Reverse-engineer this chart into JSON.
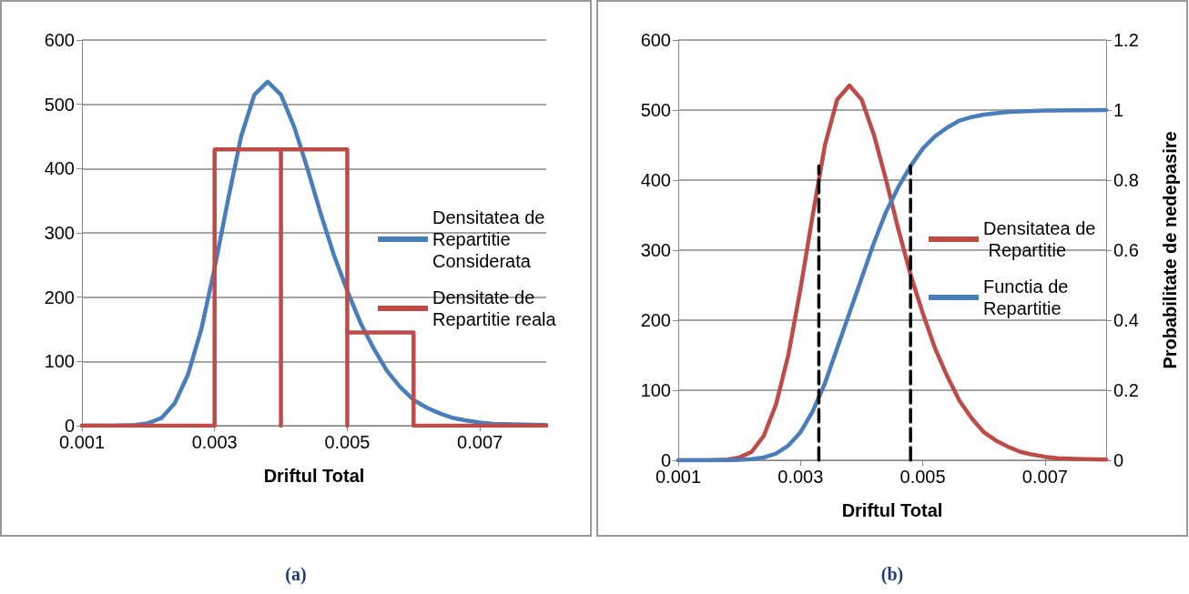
{
  "chart_data": [
    {
      "type": "line",
      "xlabel": "Driftul Total",
      "annotations": [
        "(a)"
      ],
      "xlim": [
        0.001,
        0.008
      ],
      "xticks": [
        0.001,
        0.003,
        0.005,
        0.007
      ],
      "ylim": [
        0,
        600
      ],
      "yticks": [
        0,
        100,
        200,
        300,
        400,
        500,
        600
      ],
      "grid": "y",
      "legend": "right",
      "marker": "none",
      "series": [
        {
          "name": "Densitatea de Repartitie Considerata",
          "color": "#4a7ebb",
          "x": [
            0.001,
            0.0015,
            0.0018,
            0.002,
            0.0022,
            0.0024,
            0.0026,
            0.0028,
            0.003,
            0.0032,
            0.0034,
            0.0036,
            0.0038,
            0.004,
            0.0042,
            0.0044,
            0.0046,
            0.0048,
            0.005,
            0.0052,
            0.0054,
            0.0056,
            0.0058,
            0.006,
            0.0062,
            0.0064,
            0.0066,
            0.0068,
            0.007,
            0.0072,
            0.0075,
            0.008
          ],
          "values": [
            0,
            0,
            1,
            4,
            12,
            35,
            80,
            150,
            245,
            350,
            450,
            515,
            535,
            515,
            465,
            400,
            330,
            265,
            210,
            160,
            120,
            85,
            60,
            40,
            28,
            19,
            12,
            8,
            5,
            3,
            2,
            1
          ]
        },
        {
          "name": "Densitate de Repartitie reala",
          "color": "#be4b48",
          "x": [
            0.001,
            0.003,
            0.003,
            0.004,
            0.004,
            0.004,
            0.005,
            0.005,
            0.005,
            0.006,
            0.006,
            0.008
          ],
          "values": [
            0,
            0,
            430,
            430,
            0,
            430,
            430,
            0,
            145,
            145,
            0,
            0
          ]
        }
      ]
    },
    {
      "type": "line",
      "xlabel": "Driftul Total",
      "y2label": "Probabilitate de nedepasire",
      "annotations": [
        "(b)"
      ],
      "xlim": [
        0.001,
        0.008
      ],
      "xticks": [
        0.001,
        0.003,
        0.005,
        0.007
      ],
      "ylim": [
        0,
        600
      ],
      "yticks": [
        0,
        100,
        200,
        300,
        400,
        500,
        600
      ],
      "y2lim": [
        0,
        1.2
      ],
      "y2ticks": [
        0,
        0.2,
        0.4,
        0.6,
        0.8,
        1,
        1.2
      ],
      "grid": "y",
      "legend": "right",
      "marker": "none",
      "series": [
        {
          "name": "Densitatea de Repartitie",
          "color": "#be4b48",
          "x": [
            0.001,
            0.0015,
            0.0018,
            0.002,
            0.0022,
            0.0024,
            0.0026,
            0.0028,
            0.003,
            0.0032,
            0.0034,
            0.0036,
            0.0038,
            0.004,
            0.0042,
            0.0044,
            0.0046,
            0.0048,
            0.005,
            0.0052,
            0.0054,
            0.0056,
            0.0058,
            0.006,
            0.0062,
            0.0064,
            0.0066,
            0.0068,
            0.007,
            0.0072,
            0.0075,
            0.008
          ],
          "values": [
            0,
            0,
            1,
            4,
            12,
            35,
            80,
            150,
            245,
            350,
            450,
            515,
            535,
            515,
            465,
            400,
            330,
            265,
            210,
            160,
            120,
            85,
            60,
            40,
            28,
            19,
            12,
            8,
            5,
            3,
            2,
            1
          ]
        },
        {
          "name": "Functia de Repartitie",
          "color": "#4a7ebb",
          "axis": "y2",
          "x": [
            0.001,
            0.0018,
            0.002,
            0.0022,
            0.0024,
            0.0026,
            0.0028,
            0.003,
            0.0032,
            0.0034,
            0.0036,
            0.0038,
            0.004,
            0.0042,
            0.0044,
            0.0046,
            0.0048,
            0.005,
            0.0052,
            0.0054,
            0.0056,
            0.0058,
            0.006,
            0.0064,
            0.007,
            0.008
          ],
          "values": [
            0,
            0,
            0.001,
            0.003,
            0.008,
            0.019,
            0.042,
            0.08,
            0.14,
            0.22,
            0.32,
            0.42,
            0.52,
            0.62,
            0.71,
            0.78,
            0.84,
            0.89,
            0.925,
            0.95,
            0.97,
            0.98,
            0.987,
            0.995,
            0.999,
            1
          ]
        },
        {
          "color": "#000000",
          "line_style": "dashed",
          "x": [
            0.0033,
            0.0033
          ],
          "values": [
            0,
            420
          ]
        },
        {
          "color": "#000000",
          "line_style": "dashed",
          "x": [
            0.0048,
            0.0048
          ],
          "values": [
            0,
            420
          ]
        }
      ]
    }
  ]
}
